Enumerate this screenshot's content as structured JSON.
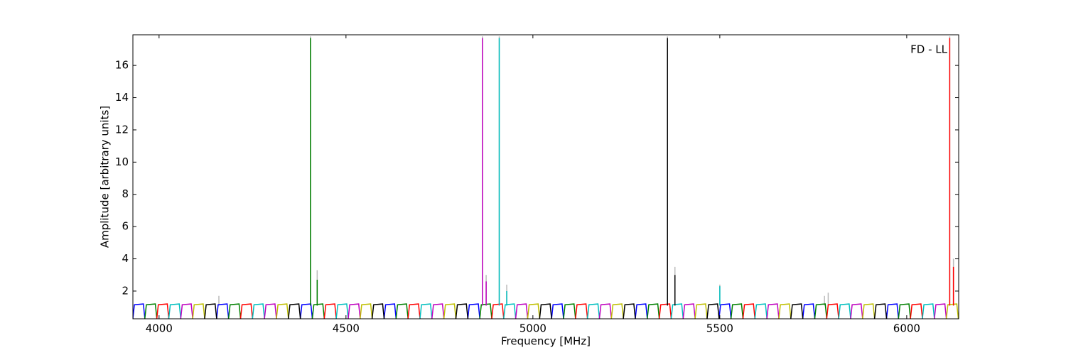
{
  "chart_data": {
    "type": "line",
    "annotation": "FD - LL",
    "xlabel": "Frequency [MHz]",
    "ylabel": "Amplitude [arbitrary units]",
    "xlim": [
      3930,
      6139
    ],
    "ylim": [
      0.28,
      17.9
    ],
    "xticks": [
      4000,
      4500,
      5000,
      5500,
      6000
    ],
    "yticks": [
      2,
      4,
      6,
      8,
      10,
      12,
      14,
      16
    ],
    "grid": false,
    "series": [
      {
        "color": "#bbbbbb",
        "x": [
          4160,
          4160,
          null,
          4405,
          4405,
          null,
          4423,
          4423,
          null,
          4865,
          4865,
          null,
          4875,
          4875,
          null,
          4910,
          4910,
          null,
          4930,
          4930,
          null,
          5360,
          5360,
          null,
          5380,
          5380,
          null,
          5500,
          5500,
          null,
          5780,
          5780,
          null,
          5790,
          5790,
          null,
          6115,
          6115,
          null,
          6125,
          6125
        ],
        "values": [
          1.1,
          1.7,
          null,
          1.1,
          17.8,
          null,
          1.1,
          3.3,
          null,
          1.1,
          17.8,
          null,
          1.1,
          3.0,
          null,
          1.1,
          17.8,
          null,
          1.1,
          2.4,
          null,
          1.1,
          17.8,
          null,
          1.1,
          3.5,
          null,
          1.1,
          2.4,
          null,
          1.1,
          1.7,
          null,
          1.1,
          1.9,
          null,
          1.1,
          17.8,
          null,
          1.1,
          4.0
        ]
      },
      {
        "color": "#0000ff",
        "x": [
          3930,
          3934,
          3958,
          3962,
          null,
          4154,
          4158,
          4182,
          4186,
          null,
          4378,
          4382,
          4406,
          4410,
          null,
          4602,
          4606,
          4630,
          4634,
          null,
          4826,
          4830,
          4854,
          4858,
          null,
          5050,
          5054,
          5078,
          5082,
          null,
          5274,
          5278,
          5302,
          5306,
          null,
          5498,
          5502,
          5526,
          5530,
          null,
          5722,
          5726,
          5750,
          5754,
          null,
          5946,
          5950,
          5974,
          5978
        ],
        "values": [
          0.3,
          1.15,
          1.2,
          0.3,
          null,
          0.3,
          1.15,
          1.2,
          0.3,
          null,
          0.3,
          1.15,
          1.2,
          0.3,
          null,
          0.3,
          1.15,
          1.2,
          0.3,
          null,
          0.3,
          1.15,
          1.2,
          0.3,
          null,
          0.3,
          1.15,
          1.2,
          0.3,
          null,
          0.3,
          1.15,
          1.2,
          0.3,
          null,
          0.3,
          1.15,
          1.2,
          0.3,
          null,
          0.3,
          1.15,
          1.2,
          0.3,
          null,
          0.3,
          1.15,
          1.2,
          0.3
        ]
      },
      {
        "color": "#008000",
        "x": [
          3962,
          3966,
          3990,
          3994,
          null,
          4186,
          4190,
          4214,
          4218,
          null,
          4410,
          4414,
          4438,
          4442,
          null,
          4634,
          4638,
          4662,
          4666,
          null,
          4858,
          4862,
          4886,
          4890,
          null,
          5082,
          5086,
          5110,
          5114,
          null,
          5306,
          5310,
          5334,
          5338,
          null,
          5530,
          5534,
          5558,
          5562,
          null,
          5754,
          5758,
          5782,
          5786,
          null,
          5978,
          5982,
          6006,
          6010
        ],
        "values": [
          0.3,
          1.15,
          1.2,
          0.3,
          null,
          0.3,
          1.15,
          1.2,
          0.3,
          null,
          0.3,
          1.15,
          1.2,
          0.3,
          null,
          0.3,
          1.15,
          1.2,
          0.3,
          null,
          0.3,
          1.15,
          1.2,
          0.3,
          null,
          0.3,
          1.15,
          1.2,
          0.3,
          null,
          0.3,
          1.15,
          1.2,
          0.3,
          null,
          0.3,
          1.15,
          1.2,
          0.3,
          null,
          0.3,
          1.15,
          1.2,
          0.3,
          null,
          0.3,
          1.15,
          1.2,
          0.3
        ]
      },
      {
        "color": "#ff0000",
        "x": [
          3994,
          3998,
          4022,
          4026,
          null,
          4218,
          4222,
          4246,
          4250,
          null,
          4442,
          4446,
          4470,
          4474,
          null,
          4666,
          4670,
          4694,
          4698,
          null,
          4890,
          4894,
          4918,
          4922,
          null,
          5114,
          5118,
          5142,
          5146,
          null,
          5338,
          5342,
          5366,
          5370,
          null,
          5562,
          5566,
          5590,
          5594,
          null,
          5786,
          5790,
          5814,
          5818,
          null,
          6010,
          6014,
          6038,
          6042
        ],
        "values": [
          0.3,
          1.15,
          1.2,
          0.3,
          null,
          0.3,
          1.15,
          1.2,
          0.3,
          null,
          0.3,
          1.15,
          1.2,
          0.3,
          null,
          0.3,
          1.15,
          1.2,
          0.3,
          null,
          0.3,
          1.15,
          1.2,
          0.3,
          null,
          0.3,
          1.15,
          1.2,
          0.3,
          null,
          0.3,
          1.15,
          1.2,
          0.3,
          null,
          0.3,
          1.15,
          1.2,
          0.3,
          null,
          0.3,
          1.15,
          1.2,
          0.3,
          null,
          0.3,
          1.15,
          1.2,
          0.3
        ]
      },
      {
        "color": "#00bfbf",
        "x": [
          4026,
          4030,
          4054,
          4058,
          null,
          4250,
          4254,
          4278,
          4282,
          null,
          4474,
          4478,
          4502,
          4506,
          null,
          4698,
          4702,
          4726,
          4730,
          null,
          4922,
          4926,
          4950,
          4954,
          null,
          5146,
          5150,
          5174,
          5178,
          null,
          5370,
          5374,
          5398,
          5402,
          null,
          5594,
          5598,
          5622,
          5626,
          null,
          5818,
          5822,
          5846,
          5850,
          null,
          6042,
          6046,
          6070,
          6074
        ],
        "values": [
          0.3,
          1.15,
          1.2,
          0.3,
          null,
          0.3,
          1.15,
          1.2,
          0.3,
          null,
          0.3,
          1.15,
          1.2,
          0.3,
          null,
          0.3,
          1.15,
          1.2,
          0.3,
          null,
          0.3,
          1.15,
          1.2,
          0.3,
          null,
          0.3,
          1.15,
          1.2,
          0.3,
          null,
          0.3,
          1.15,
          1.2,
          0.3,
          null,
          0.3,
          1.15,
          1.2,
          0.3,
          null,
          0.3,
          1.15,
          1.2,
          0.3,
          null,
          0.3,
          1.15,
          1.2,
          0.3
        ]
      },
      {
        "color": "#bf00bf",
        "x": [
          4058,
          4062,
          4086,
          4090,
          null,
          4282,
          4286,
          4310,
          4314,
          null,
          4506,
          4510,
          4534,
          4538,
          null,
          4730,
          4734,
          4758,
          4762,
          null,
          4954,
          4958,
          4982,
          4986,
          null,
          5178,
          5182,
          5206,
          5210,
          null,
          5402,
          5406,
          5430,
          5434,
          null,
          5626,
          5630,
          5654,
          5658,
          null,
          5850,
          5854,
          5878,
          5882,
          null,
          6074,
          6078,
          6102,
          6106
        ],
        "values": [
          0.3,
          1.15,
          1.2,
          0.3,
          null,
          0.3,
          1.15,
          1.2,
          0.3,
          null,
          0.3,
          1.15,
          1.2,
          0.3,
          null,
          0.3,
          1.15,
          1.2,
          0.3,
          null,
          0.3,
          1.15,
          1.2,
          0.3,
          null,
          0.3,
          1.15,
          1.2,
          0.3,
          null,
          0.3,
          1.15,
          1.2,
          0.3,
          null,
          0.3,
          1.15,
          1.2,
          0.3,
          null,
          0.3,
          1.15,
          1.2,
          0.3,
          null,
          0.3,
          1.15,
          1.2,
          0.3
        ]
      },
      {
        "color": "#bfbf00",
        "x": [
          4090,
          4094,
          4118,
          4122,
          null,
          4314,
          4318,
          4342,
          4346,
          null,
          4538,
          4542,
          4566,
          4570,
          null,
          4762,
          4766,
          4790,
          4794,
          null,
          4986,
          4990,
          5014,
          5018,
          null,
          5210,
          5214,
          5238,
          5242,
          null,
          5434,
          5438,
          5462,
          5466,
          null,
          5658,
          5662,
          5686,
          5690,
          null,
          5882,
          5886,
          5910,
          5914,
          null,
          6106,
          6110,
          6134,
          6138
        ],
        "values": [
          0.3,
          1.15,
          1.2,
          0.3,
          null,
          0.3,
          1.15,
          1.2,
          0.3,
          null,
          0.3,
          1.15,
          1.2,
          0.3,
          null,
          0.3,
          1.15,
          1.2,
          0.3,
          null,
          0.3,
          1.15,
          1.2,
          0.3,
          null,
          0.3,
          1.15,
          1.2,
          0.3,
          null,
          0.3,
          1.15,
          1.2,
          0.3,
          null,
          0.3,
          1.15,
          1.2,
          0.3,
          null,
          0.3,
          1.15,
          1.2,
          0.3,
          null,
          0.3,
          1.15,
          1.2,
          0.3
        ]
      },
      {
        "color": "#000000",
        "x": [
          4122,
          4126,
          4150,
          4154,
          null,
          4346,
          4350,
          4374,
          4378,
          null,
          4570,
          4574,
          4598,
          4602,
          null,
          4794,
          4798,
          4822,
          4826,
          null,
          5018,
          5022,
          5046,
          5050,
          null,
          5242,
          5246,
          5270,
          5274,
          null,
          5466,
          5470,
          5494,
          5498,
          null,
          5690,
          5694,
          5718,
          5722,
          null,
          5914,
          5918,
          5942,
          5946
        ],
        "values": [
          0.3,
          1.15,
          1.2,
          0.3,
          null,
          0.3,
          1.15,
          1.2,
          0.3,
          null,
          0.3,
          1.15,
          1.2,
          0.3,
          null,
          0.3,
          1.15,
          1.2,
          0.3,
          null,
          0.3,
          1.15,
          1.2,
          0.3,
          null,
          0.3,
          1.15,
          1.2,
          0.3,
          null,
          0.3,
          1.15,
          1.2,
          0.3,
          null,
          0.3,
          1.15,
          1.2,
          0.3,
          null,
          0.3,
          1.15,
          1.2,
          0.3
        ]
      },
      {
        "color": "#008000",
        "x": [
          4405,
          4405,
          null,
          4423,
          4423
        ],
        "values": [
          1.1,
          17.7,
          null,
          1.1,
          2.7
        ]
      },
      {
        "color": "#bf00bf",
        "x": [
          4865,
          4865,
          null,
          4875,
          4875
        ],
        "values": [
          1.1,
          17.7,
          null,
          1.1,
          2.6
        ]
      },
      {
        "color": "#00bfbf",
        "x": [
          4910,
          4910,
          null,
          4930,
          4930,
          null,
          5500,
          5500
        ],
        "values": [
          1.1,
          17.7,
          null,
          1.1,
          2.0,
          null,
          1.1,
          2.3
        ]
      },
      {
        "color": "#000000",
        "x": [
          5360,
          5360,
          null,
          5380,
          5380
        ],
        "values": [
          1.1,
          17.7,
          null,
          1.1,
          3.0
        ]
      },
      {
        "color": "#ff0000",
        "x": [
          6115,
          6115,
          null,
          6125,
          6125
        ],
        "values": [
          1.1,
          17.7,
          null,
          1.1,
          3.5
        ]
      }
    ]
  }
}
